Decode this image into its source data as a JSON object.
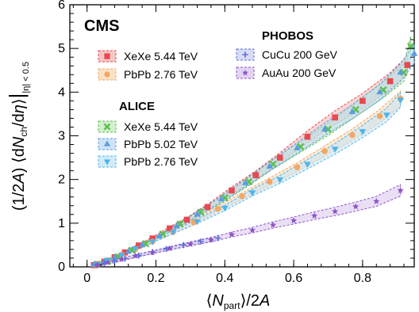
{
  "chart_data": {
    "type": "scatter",
    "title": "",
    "xlabel": "⟨N_part⟩/2A",
    "ylabel": "(1/2A) ⟨dN_ch/dη⟩ at |η| < 0.5",
    "xlim": [
      -0.05,
      0.95
    ],
    "ylim": [
      0,
      6
    ],
    "xticks": [
      "0",
      "0.2",
      "0.4",
      "0.6",
      "0.8",
      "1"
    ],
    "yticks": [
      "0",
      "1",
      "2",
      "3",
      "4",
      "5",
      "6"
    ],
    "experiment_label": "CMS",
    "groups": [
      {
        "header": "",
        "entries": [
          "XeXe 5.44 TeV",
          "PbPb 2.76 TeV"
        ]
      },
      {
        "header": "ALICE",
        "entries": [
          "XeXe 5.44 TeV",
          "PbPb 5.02 TeV",
          "PbPb 2.76 TeV"
        ]
      },
      {
        "header": "PHOBOS",
        "entries": [
          "CuCu 200 GeV",
          "AuAu 200 GeV"
        ]
      }
    ],
    "series": [
      {
        "name": "XeXe 5.44 TeV",
        "group": "CMS",
        "marker": "square",
        "color": "#e8484f",
        "band": "#f2b4b4",
        "x": [
          0.02,
          0.05,
          0.08,
          0.11,
          0.15,
          0.19,
          0.24,
          0.29,
          0.35,
          0.42,
          0.49,
          0.56,
          0.64,
          0.72,
          0.8,
          0.88,
          0.93
        ],
        "y": [
          0.04,
          0.12,
          0.22,
          0.33,
          0.49,
          0.65,
          0.88,
          1.08,
          1.37,
          1.75,
          2.1,
          2.5,
          2.98,
          3.42,
          3.8,
          4.25,
          4.62
        ]
      },
      {
        "name": "PbPb 2.76 TeV",
        "group": "CMS",
        "marker": "circle",
        "color": "#f4a765",
        "band": "#f7d7b4",
        "x": [
          0.03,
          0.06,
          0.1,
          0.14,
          0.19,
          0.25,
          0.31,
          0.38,
          0.45,
          0.53,
          0.61,
          0.69,
          0.77,
          0.85,
          0.91
        ],
        "y": [
          0.07,
          0.15,
          0.28,
          0.4,
          0.58,
          0.8,
          1.02,
          1.33,
          1.62,
          1.95,
          2.28,
          2.65,
          3.02,
          3.45,
          3.85
        ]
      },
      {
        "name": "XeXe 5.44 TeV",
        "group": "ALICE",
        "marker": "cross",
        "color": "#5bbf4e",
        "band": "#c7e8c0",
        "x": [
          0.03,
          0.06,
          0.09,
          0.13,
          0.17,
          0.22,
          0.27,
          0.33,
          0.4,
          0.47,
          0.54,
          0.62,
          0.7,
          0.78,
          0.86,
          0.92,
          0.94
        ],
        "y": [
          0.06,
          0.13,
          0.23,
          0.38,
          0.53,
          0.75,
          0.98,
          1.25,
          1.58,
          1.95,
          2.35,
          2.75,
          3.15,
          3.6,
          4.05,
          4.45,
          5.05
        ]
      },
      {
        "name": "PbPb 5.02 TeV",
        "group": "ALICE",
        "marker": "triangle-up",
        "color": "#5b9ee0",
        "band": "#c0daf3",
        "x": [
          0.02,
          0.05,
          0.08,
          0.12,
          0.16,
          0.21,
          0.26,
          0.32,
          0.39,
          0.46,
          0.53,
          0.61,
          0.69,
          0.77,
          0.85,
          0.91,
          0.95
        ],
        "y": [
          0.05,
          0.12,
          0.21,
          0.35,
          0.5,
          0.7,
          0.93,
          1.2,
          1.55,
          1.92,
          2.3,
          2.72,
          3.15,
          3.55,
          4.0,
          4.45,
          4.88
        ]
      },
      {
        "name": "PbPb 2.76 TeV",
        "group": "ALICE",
        "marker": "triangle-down",
        "color": "#4db5ea",
        "band": "#c4e6f7",
        "x": [
          0.03,
          0.06,
          0.1,
          0.14,
          0.19,
          0.25,
          0.32,
          0.4,
          0.48,
          0.56,
          0.64,
          0.72,
          0.8,
          0.87,
          0.91
        ],
        "y": [
          0.06,
          0.15,
          0.27,
          0.42,
          0.58,
          0.8,
          1.04,
          1.35,
          1.7,
          2.0,
          2.35,
          2.7,
          3.1,
          3.48,
          3.82
        ]
      },
      {
        "name": "CuCu 200 GeV",
        "group": "PHOBOS",
        "marker": "plus",
        "color": "#5a6ed8",
        "band": "#c9cff2",
        "x": [
          0.03,
          0.05,
          0.08,
          0.11,
          0.15,
          0.19,
          0.23,
          0.28,
          0.33,
          0.38
        ],
        "y": [
          0.04,
          0.08,
          0.13,
          0.19,
          0.26,
          0.34,
          0.41,
          0.5,
          0.58,
          0.66
        ]
      },
      {
        "name": "AuAu 200 GeV",
        "group": "PHOBOS",
        "marker": "star",
        "color": "#8e54c7",
        "band": "#d9c6ee",
        "x": [
          0.03,
          0.06,
          0.1,
          0.14,
          0.19,
          0.24,
          0.3,
          0.36,
          0.42,
          0.48,
          0.54,
          0.6,
          0.66,
          0.72,
          0.78,
          0.84,
          0.91
        ],
        "y": [
          0.05,
          0.1,
          0.17,
          0.25,
          0.33,
          0.42,
          0.52,
          0.62,
          0.74,
          0.84,
          0.96,
          1.06,
          1.17,
          1.27,
          1.38,
          1.5,
          1.75
        ]
      }
    ]
  }
}
